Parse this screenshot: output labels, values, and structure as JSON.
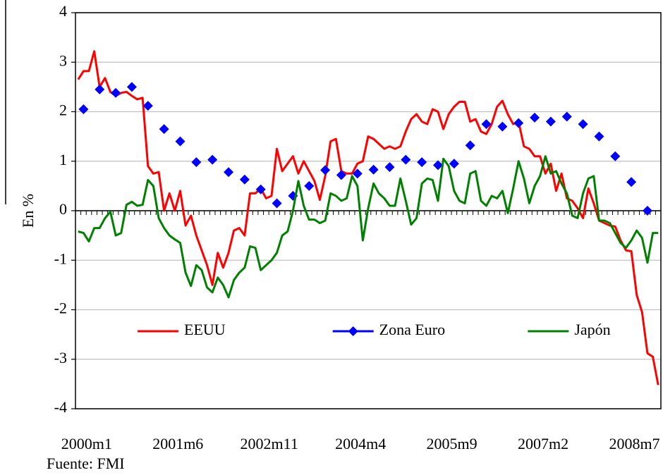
{
  "chart_data": {
    "type": "line",
    "y_label": "En %",
    "source": "Fuente: FMI",
    "categories": [
      "2000m1",
      null,
      null,
      null,
      null,
      null,
      null,
      null,
      null,
      null,
      null,
      null,
      null,
      null,
      null,
      null,
      null,
      "2001m6",
      null,
      null,
      null,
      null,
      null,
      null,
      null,
      null,
      null,
      null,
      null,
      null,
      null,
      null,
      null,
      null,
      "2002m11",
      null,
      null,
      null,
      null,
      null,
      null,
      null,
      null,
      null,
      null,
      null,
      null,
      null,
      null,
      null,
      null,
      "2004m4",
      null,
      null,
      null,
      null,
      null,
      null,
      null,
      null,
      null,
      null,
      null,
      null,
      null,
      null,
      null,
      null,
      "2005m9",
      null,
      null,
      null,
      null,
      null,
      null,
      null,
      null,
      null,
      null,
      null,
      null,
      null,
      null,
      null,
      null,
      "2007m2",
      null,
      null,
      null,
      null,
      null,
      null,
      null,
      null,
      null,
      null,
      null,
      null,
      null,
      null,
      null,
      null,
      "2008m7",
      null,
      null,
      null,
      null,
      null,
      null
    ],
    "series": [
      {
        "name": "EEUU",
        "color": "#ff0000",
        "line": true,
        "marker": "none",
        "values": [
          2.65,
          2.82,
          2.82,
          3.22,
          2.5,
          2.68,
          2.4,
          2.32,
          2.38,
          2.4,
          2.32,
          2.25,
          2.28,
          0.9,
          0.75,
          0.78,
          0.0,
          0.35,
          0.0,
          0.4,
          -0.3,
          -0.1,
          -0.5,
          -0.8,
          -1.1,
          -1.5,
          -0.85,
          -1.15,
          -0.85,
          -0.4,
          -0.35,
          -0.5,
          0.35,
          0.35,
          0.45,
          0.25,
          0.3,
          1.25,
          0.8,
          0.95,
          1.1,
          0.75,
          1.0,
          0.8,
          0.6,
          0.22,
          0.7,
          1.4,
          1.45,
          0.8,
          0.75,
          0.75,
          0.95,
          1.0,
          1.5,
          1.45,
          1.35,
          1.25,
          1.3,
          1.25,
          1.3,
          1.6,
          1.85,
          1.95,
          1.8,
          1.75,
          2.05,
          2.0,
          1.65,
          1.95,
          2.1,
          2.2,
          2.2,
          1.8,
          1.85,
          1.6,
          1.55,
          1.75,
          2.1,
          2.22,
          1.95,
          1.75,
          1.8,
          1.3,
          1.25,
          1.1,
          1.1,
          0.75,
          0.95,
          0.4,
          0.75,
          0.25,
          0.2,
          0.05,
          -0.15,
          0.45,
          0.15,
          -0.2,
          -0.25,
          -0.3,
          -0.32,
          -0.6,
          -0.8,
          -0.82,
          -1.7,
          -2.05,
          -2.88,
          -2.95,
          -3.52
        ]
      },
      {
        "name": "Zona Euro",
        "color": "#0000ff",
        "line": false,
        "marker": "diamond",
        "values": [
          null,
          2.05,
          null,
          null,
          2.45,
          null,
          null,
          2.38,
          null,
          null,
          2.5,
          null,
          null,
          2.12,
          null,
          null,
          1.65,
          null,
          null,
          1.4,
          null,
          null,
          0.98,
          null,
          null,
          1.03,
          null,
          null,
          0.78,
          null,
          null,
          0.63,
          null,
          null,
          0.43,
          null,
          null,
          0.15,
          null,
          null,
          0.3,
          null,
          null,
          0.5,
          null,
          null,
          0.82,
          null,
          null,
          0.72,
          null,
          null,
          0.75,
          null,
          null,
          0.83,
          null,
          null,
          0.88,
          null,
          null,
          1.03,
          null,
          null,
          0.98,
          null,
          null,
          0.92,
          null,
          null,
          0.95,
          null,
          null,
          1.32,
          null,
          null,
          1.75,
          null,
          null,
          1.7,
          null,
          null,
          1.77,
          null,
          null,
          1.88,
          null,
          null,
          1.8,
          null,
          null,
          1.9,
          null,
          null,
          1.75,
          null,
          null,
          1.5,
          null,
          null,
          1.1,
          null,
          null,
          0.58,
          null,
          null,
          0.0,
          null,
          null
        ]
      },
      {
        "name": "Japón",
        "color": "#008000",
        "line": true,
        "marker": "none",
        "values": [
          -0.42,
          -0.45,
          -0.62,
          -0.35,
          -0.35,
          -0.15,
          -0.02,
          -0.5,
          -0.45,
          0.12,
          0.18,
          0.1,
          0.12,
          0.62,
          0.5,
          -0.15,
          -0.35,
          -0.5,
          -0.58,
          -0.65,
          -1.25,
          -1.52,
          -1.1,
          -1.2,
          -1.55,
          -1.65,
          -1.35,
          -1.5,
          -1.75,
          -1.4,
          -1.25,
          -1.15,
          -0.72,
          -0.75,
          -1.2,
          -1.1,
          -1.0,
          -0.85,
          -0.5,
          -0.42,
          0.0,
          0.6,
          0.1,
          -0.18,
          -0.18,
          -0.25,
          -0.2,
          0.35,
          0.3,
          0.2,
          0.25,
          0.7,
          0.5,
          -0.6,
          0.05,
          0.55,
          0.35,
          0.25,
          0.1,
          0.1,
          0.65,
          0.2,
          -0.28,
          -0.15,
          0.55,
          0.65,
          0.62,
          0.2,
          1.05,
          0.9,
          0.4,
          0.2,
          0.15,
          0.75,
          0.8,
          0.2,
          0.1,
          0.3,
          0.25,
          0.4,
          -0.05,
          0.45,
          1.0,
          0.65,
          0.15,
          0.5,
          0.7,
          1.1,
          0.75,
          0.8,
          0.55,
          0.35,
          -0.1,
          -0.15,
          0.35,
          0.65,
          0.7,
          -0.2,
          -0.2,
          -0.25,
          -0.45,
          -0.65,
          -0.75,
          -0.6,
          -0.4,
          -0.55,
          -1.05,
          -0.45,
          -0.45
        ]
      }
    ],
    "ylim": [
      -4,
      4
    ],
    "yticks": [
      -4,
      -3,
      -2,
      -1,
      0,
      1,
      2,
      3,
      4
    ],
    "grid": true,
    "legend": "bottom"
  }
}
